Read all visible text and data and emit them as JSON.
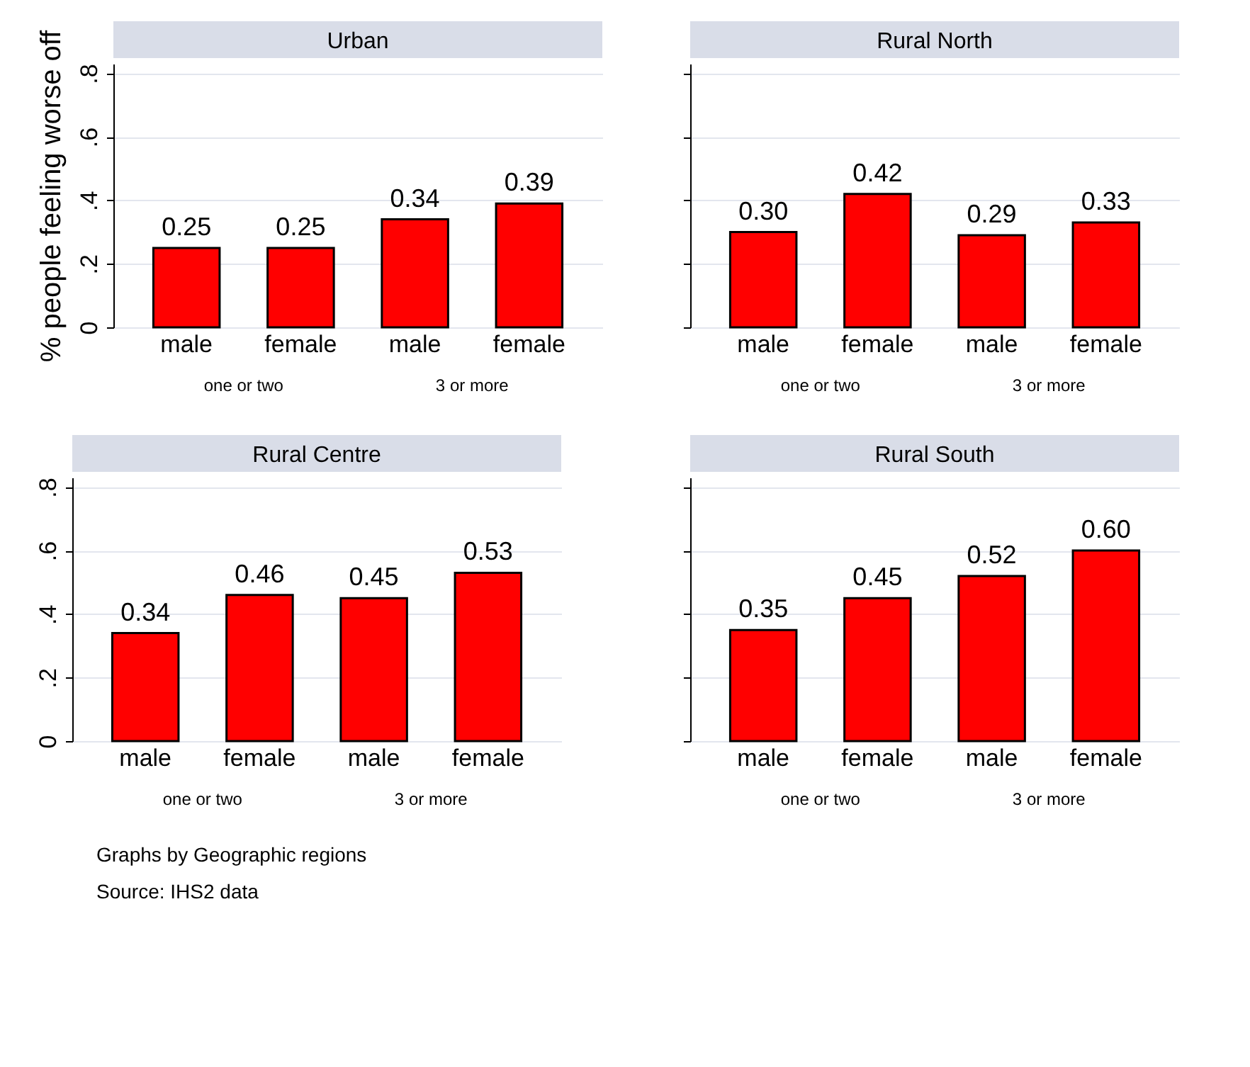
{
  "chart_data": [
    {
      "type": "bar",
      "title": "Urban",
      "ylabel": "% people feeling worse off",
      "categories": [
        "male",
        "female",
        "male",
        "female"
      ],
      "values": [
        0.25,
        0.25,
        0.34,
        0.39
      ],
      "value_labels": [
        "0.25",
        "0.25",
        "0.34",
        "0.39"
      ],
      "color": "#ff0000",
      "ylim": [
        0,
        0.83
      ],
      "yticks": [
        0,
        {
          "value": 0.2,
          "label": ".2"
        },
        {
          "value": 0.4,
          "label": ".4"
        },
        {
          "value": 0.6,
          "label": ".6"
        },
        {
          "value": 0.8,
          "label": ".8"
        }
      ],
      "grid": "y",
      "annotations": [
        "one or two",
        "3 or more"
      ]
    },
    {
      "type": "bar",
      "title": "Rural North",
      "categories": [
        "male",
        "female",
        "male",
        "female"
      ],
      "values": [
        0.3,
        0.42,
        0.29,
        0.33
      ],
      "value_labels": [
        "0.30",
        "0.42",
        "0.29",
        "0.33"
      ],
      "color": "#ff0000",
      "ylim": [
        0,
        0.83
      ],
      "yticks": [
        {
          "value": 0,
          "label": null
        },
        {
          "value": 0.2,
          "label": null
        },
        {
          "value": 0.4,
          "label": null
        },
        {
          "value": 0.6,
          "label": null
        },
        {
          "value": 0.8,
          "label": null
        }
      ],
      "grid": "y",
      "tick_labels": "x",
      "annotations": [
        "one or two",
        "3 or more"
      ]
    },
    {
      "type": "bar",
      "title": "Rural Centre",
      "categories": [
        "male",
        "female",
        "male",
        "female"
      ],
      "values": [
        0.34,
        0.46,
        0.45,
        0.53
      ],
      "value_labels": [
        "0.34",
        "0.46",
        "0.45",
        "0.53"
      ],
      "color": "#ff0000",
      "ylim": [
        0,
        0.83
      ],
      "yticks": [
        0,
        {
          "value": 0.2,
          "label": ".2"
        },
        {
          "value": 0.4,
          "label": ".4"
        },
        {
          "value": 0.6,
          "label": ".6"
        },
        {
          "value": 0.8,
          "label": ".8"
        }
      ],
      "grid": "y",
      "annotations": [
        "one or two",
        "3 or more"
      ]
    },
    {
      "type": "bar",
      "title": "Rural South",
      "categories": [
        "male",
        "female",
        "male",
        "female"
      ],
      "values": [
        0.35,
        0.45,
        0.52,
        0.6
      ],
      "value_labels": [
        "0.35",
        "0.45",
        "0.52",
        "0.60"
      ],
      "color": "#ff0000",
      "ylim": [
        0,
        0.83
      ],
      "yticks": [
        {
          "value": 0,
          "label": null
        },
        {
          "value": 0.2,
          "label": null
        },
        {
          "value": 0.4,
          "label": null
        },
        {
          "value": 0.6,
          "label": null
        },
        {
          "value": 0.8,
          "label": null
        }
      ],
      "grid": "y",
      "tick_labels": "x",
      "annotations": [
        "one or two",
        "3 or more",
        "Graphs by Geographic regions",
        "Source: IHS2 data"
      ]
    }
  ]
}
